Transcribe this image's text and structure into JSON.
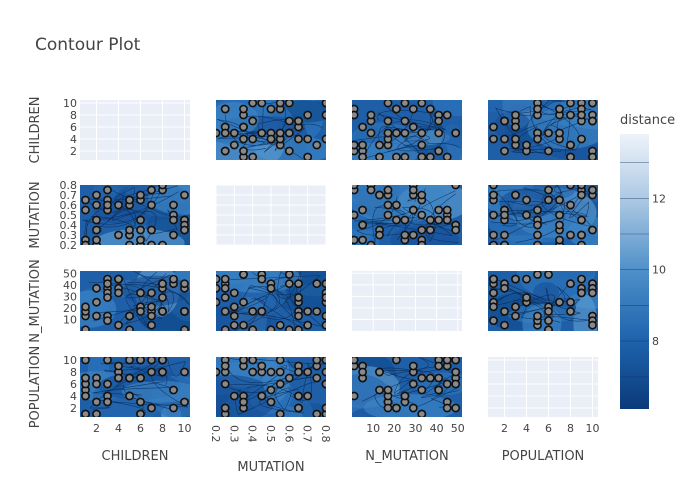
{
  "chart_data": {
    "type": "contour",
    "title": "Contour Plot",
    "variables": [
      "CHILDREN",
      "MUTATION",
      "N_MUTATION",
      "POPULATION"
    ],
    "row_labels": [
      "CHILDREN",
      "MUTATION",
      "N_MUTATION",
      "POPULATION"
    ],
    "col_labels": [
      "CHILDREN",
      "MUTATION",
      "N_MUTATION",
      "POPULATION"
    ],
    "ranges": {
      "CHILDREN": [
        0.5,
        10.5
      ],
      "MUTATION": [
        0.2,
        0.8
      ],
      "N_MUTATION": [
        0,
        52
      ],
      "POPULATION": [
        0.5,
        10.5
      ]
    },
    "ticks": {
      "CHILDREN": [
        "2",
        "4",
        "6",
        "8",
        "10"
      ],
      "MUTATION": [
        "0.2",
        "0.3",
        "0.4",
        "0.5",
        "0.6",
        "0.7",
        "0.8"
      ],
      "N_MUTATION": [
        "10",
        "20",
        "30",
        "40",
        "50"
      ],
      "POPULATION": [
        "2",
        "4",
        "6",
        "8",
        "10"
      ]
    },
    "tick_values": {
      "CHILDREN": [
        2,
        4,
        6,
        8,
        10
      ],
      "MUTATION": [
        0.2,
        0.3,
        0.4,
        0.5,
        0.6,
        0.7,
        0.8
      ],
      "N_MUTATION": [
        10,
        20,
        30,
        40,
        50
      ],
      "POPULATION": [
        2,
        4,
        6,
        8,
        10
      ]
    },
    "colorbar": {
      "title": "distance",
      "range": [
        6.1,
        13.8
      ],
      "ticks": [
        "8",
        "10",
        "12"
      ],
      "tick_values": [
        8,
        10,
        12
      ],
      "colors": [
        "#0b3a7a",
        "#1e63ad",
        "#4d8fc9",
        "#a8c6e2",
        "#eef3fa"
      ]
    },
    "grid": true,
    "legend": "right"
  }
}
